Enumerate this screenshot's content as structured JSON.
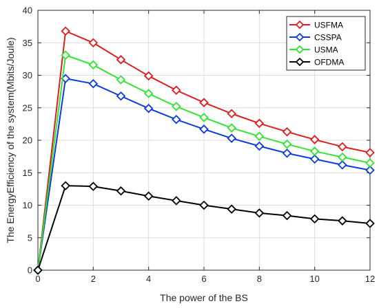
{
  "chart_data": {
    "type": "line",
    "title": "",
    "xlabel": "The power of the BS",
    "ylabel": "The EnergyEfficiency of the system(Mbits/Joule)",
    "xlim": [
      0,
      12
    ],
    "ylim": [
      0,
      40
    ],
    "xticks": [
      0,
      2,
      4,
      6,
      8,
      10,
      12
    ],
    "yticks": [
      0,
      5,
      10,
      15,
      20,
      25,
      30,
      35,
      40
    ],
    "grid": true,
    "legend_position": "top-right",
    "marker": "diamond",
    "x": [
      0,
      1,
      2,
      3,
      4,
      5,
      6,
      7,
      8,
      9,
      10,
      11,
      12
    ],
    "series": [
      {
        "name": "USFMA",
        "color": "#e31a1c",
        "values": [
          0,
          36.8,
          35.0,
          32.4,
          29.9,
          27.7,
          25.8,
          24.1,
          22.6,
          21.3,
          20.1,
          19.0,
          18.1
        ]
      },
      {
        "name": "CSSPA",
        "color": "#0a3ae0",
        "values": [
          0,
          29.5,
          28.7,
          26.8,
          24.9,
          23.2,
          21.7,
          20.3,
          19.1,
          18.0,
          17.1,
          16.2,
          15.4
        ]
      },
      {
        "name": "USMA",
        "color": "#2ee62e",
        "values": [
          0,
          33.1,
          31.6,
          29.3,
          27.2,
          25.2,
          23.5,
          21.9,
          20.6,
          19.4,
          18.3,
          17.4,
          16.5
        ]
      },
      {
        "name": "OFDMA",
        "color": "#000000",
        "values": [
          0,
          13.0,
          12.9,
          12.2,
          11.4,
          10.7,
          10.0,
          9.4,
          8.8,
          8.4,
          7.9,
          7.6,
          7.2
        ]
      }
    ]
  }
}
